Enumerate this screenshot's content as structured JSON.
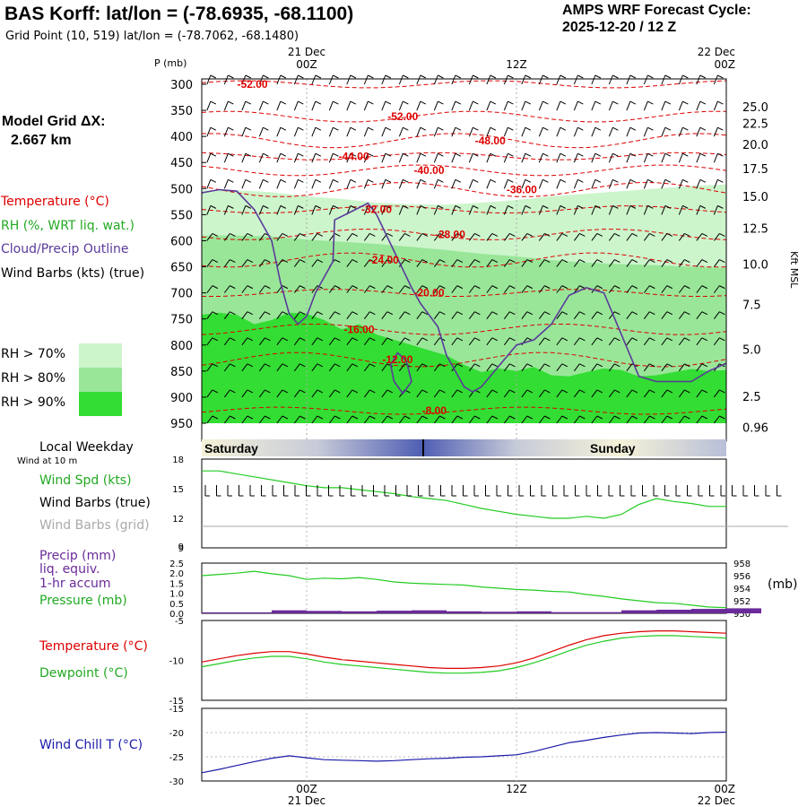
{
  "header": {
    "title": "BAS Korff:  lat/lon = (-78.6935, -68.1100)",
    "grid_point": "Grid Point (10, 519) lat/lon = (-78.7062, -68.1480)",
    "cycle_title": "AMPS WRF Forecast Cycle:",
    "cycle_value": "2025-12-20 / 12  Z"
  },
  "model_grid": {
    "label": "Model Grid ΔX:",
    "value": "2.667 km"
  },
  "colors": {
    "temperature": "#dd0000",
    "rh": "#22bb22",
    "cloud": "#5a3a9a",
    "precip": "#6a2a9a",
    "wind_chill": "#1a1aaa",
    "rh70": "#ccf5cc",
    "rh80": "#99e699",
    "rh90": "#33dd33"
  },
  "top_legend": {
    "temperature": "Temperature (°C)",
    "rh": "RH (%, WRT liq. wat.)",
    "cloud": "Cloud/Precip Outline",
    "wind": "Wind Barbs (kts) (true)",
    "rh70": "RH > 70%",
    "rh80": "RH > 80%",
    "rh90": "RH > 90%"
  },
  "time_axis": {
    "top_labels": [
      {
        "date": "21 Dec",
        "hour": "00Z"
      },
      {
        "date": "",
        "hour": "12Z"
      },
      {
        "date": "22 Dec",
        "hour": "00Z"
      }
    ],
    "bottom_labels": [
      {
        "hour": "00Z",
        "date": "21 Dec"
      },
      {
        "hour": "12Z",
        "date": ""
      },
      {
        "hour": "00Z",
        "date": "22 Dec"
      }
    ]
  },
  "local_weekday": {
    "label": "Local Weekday",
    "days": [
      "Saturday",
      "Sunday"
    ]
  },
  "wind_panel": {
    "caption": "Wind at 10 m",
    "legend": [
      "Wind Spd (kts)",
      "Wind Barbs (true)",
      "Wind Barbs (grid)"
    ],
    "legend_colors": [
      "#22bb22",
      "#000000",
      "#aaaaaa"
    ]
  },
  "precip_panel": {
    "legend": [
      "Precip (mm)",
      "liq. equiv.",
      "1-hr accum",
      "Pressure (mb)"
    ],
    "legend_colors": [
      "#6a2a9a",
      "#6a2a9a",
      "#6a2a9a",
      "#22bb22"
    ],
    "right_unit": "(mb)"
  },
  "temp_panel": {
    "legend": [
      "Temperature (°C)",
      "Dewpoint (°C)"
    ],
    "legend_colors": [
      "#dd0000",
      "#22bb22"
    ]
  },
  "chill_panel": {
    "legend": [
      "Wind Chill T (°C)"
    ],
    "legend_colors": [
      "#1a1aaa"
    ]
  },
  "chart_data": [
    {
      "type": "heatmap",
      "title": "",
      "xlabel": "",
      "ylabel": "P (mb)",
      "y2label": "Kft MSL",
      "x_range_hours": [
        -6,
        24
      ],
      "ylim": [
        300,
        950
      ],
      "pressure_ticks": [
        300,
        350,
        400,
        450,
        500,
        550,
        600,
        650,
        700,
        750,
        800,
        850,
        900,
        950
      ],
      "height_ticks": [
        {
          "label": "25.0",
          "p": 343
        },
        {
          "label": "22.5",
          "p": 375
        },
        {
          "label": "20.0",
          "p": 415
        },
        {
          "label": "17.5",
          "p": 462
        },
        {
          "label": "15.0",
          "p": 515
        },
        {
          "label": "12.5",
          "p": 576
        },
        {
          "label": "10.0",
          "p": 645
        },
        {
          "label": "7.5",
          "p": 722
        },
        {
          "label": "5.0",
          "p": 808
        },
        {
          "label": "2.5",
          "p": 898
        },
        {
          "label": "0.96",
          "p": 958
        }
      ],
      "temperature_contours": [
        {
          "label": "-52.00",
          "x": -3.1,
          "p": 300
        },
        {
          "label": "-52.00",
          "x": 5.5,
          "p": 362
        },
        {
          "label": "-48.00",
          "x": 10.5,
          "p": 408
        },
        {
          "label": "-44.00",
          "x": 2.7,
          "p": 438
        },
        {
          "label": "-40.00",
          "x": 7.0,
          "p": 465
        },
        {
          "label": "-36.00",
          "x": 12.3,
          "p": 502
        },
        {
          "label": "-32.00",
          "x": 4.0,
          "p": 540
        },
        {
          "label": "-28.00",
          "x": 8.2,
          "p": 588
        },
        {
          "label": "-24.00",
          "x": 4.4,
          "p": 637
        },
        {
          "label": "-20.00",
          "x": 7.0,
          "p": 700
        },
        {
          "label": "-16.00",
          "x": 3.0,
          "p": 770
        },
        {
          "label": "-12.00",
          "x": 5.2,
          "p": 828
        },
        {
          "label": "-8.00",
          "x": 7.3,
          "p": 926
        }
      ]
    },
    {
      "type": "line",
      "title": "",
      "ylim": [
        9,
        18
      ],
      "y_ticks": [
        9,
        12,
        15,
        18
      ],
      "series": [
        {
          "name": "Wind Spd (kts)",
          "x": [
            -6,
            -5,
            -3,
            -1,
            0,
            1,
            2,
            3,
            4,
            5,
            6,
            7,
            8,
            9,
            10,
            11,
            12,
            13,
            14,
            15,
            16,
            17,
            18,
            19,
            20,
            21,
            22,
            23,
            24
          ],
          "values": [
            16.8,
            16.8,
            16.2,
            15.6,
            15.3,
            15.1,
            15.1,
            14.9,
            14.7,
            14.5,
            14.2,
            14.0,
            13.8,
            13.4,
            13.0,
            12.7,
            12.4,
            12.2,
            12.0,
            12.0,
            12.2,
            12.0,
            12.4,
            13.4,
            14.0,
            13.7,
            13.5,
            13.2,
            13.2
          ]
        }
      ]
    },
    {
      "type": "bar",
      "title": "",
      "ylim": [
        0,
        2.5
      ],
      "y_ticks": [
        0,
        0.5,
        1.0,
        1.5,
        2.0,
        2.5
      ],
      "y2lim": [
        950,
        958
      ],
      "y2_ticks": [
        950,
        952,
        954,
        956,
        958
      ],
      "series": [
        {
          "name": "Precip (mm)",
          "x": [
            -6,
            -4,
            -2,
            0,
            2,
            4,
            6,
            8,
            10,
            12,
            14,
            16,
            18,
            20,
            22,
            24
          ],
          "values": [
            0.05,
            0.05,
            0.15,
            0.12,
            0.1,
            0.13,
            0.15,
            0.1,
            0.08,
            0.1,
            0.06,
            0.06,
            0.15,
            0.18,
            0.22,
            0.25
          ]
        },
        {
          "name": "Pressure (mb)",
          "x": [
            -6,
            -5,
            -4,
            -3,
            -2,
            -1,
            0,
            1,
            2,
            3,
            4,
            5,
            6,
            7,
            8,
            9,
            10,
            11,
            12,
            13,
            14,
            15,
            16,
            17,
            18,
            19,
            20,
            21,
            22,
            23,
            24
          ],
          "values": [
            956.0,
            956.2,
            956.4,
            956.7,
            956.3,
            956.0,
            955.4,
            955.6,
            955.5,
            955.7,
            955.4,
            955.0,
            954.8,
            954.7,
            954.6,
            954.5,
            954.2,
            954.0,
            953.8,
            953.7,
            953.5,
            953.4,
            953.0,
            952.7,
            952.3,
            952.0,
            951.7,
            951.6,
            951.3,
            951.0,
            950.9
          ]
        }
      ]
    },
    {
      "type": "line",
      "title": "",
      "ylim": [
        -15,
        -5
      ],
      "y_ticks": [
        -15,
        -10,
        -5
      ],
      "series": [
        {
          "name": "Temperature (°C)",
          "x": [
            -6,
            -5,
            -4,
            -3,
            -2,
            -1,
            0,
            1,
            2,
            3,
            4,
            5,
            6,
            7,
            8,
            9,
            10,
            11,
            12,
            13,
            14,
            15,
            16,
            17,
            18,
            19,
            20,
            21,
            22,
            23,
            24
          ],
          "values": [
            -10.2,
            -9.8,
            -9.4,
            -9.1,
            -8.9,
            -8.9,
            -9.2,
            -9.6,
            -9.9,
            -10.1,
            -10.3,
            -10.5,
            -10.7,
            -10.9,
            -11.0,
            -11.0,
            -10.9,
            -10.7,
            -10.3,
            -9.7,
            -8.9,
            -8.1,
            -7.4,
            -6.9,
            -6.6,
            -6.4,
            -6.3,
            -6.3,
            -6.4,
            -6.5,
            -6.6
          ]
        },
        {
          "name": "Dewpoint (°C)",
          "x": [
            -6,
            -5,
            -4,
            -3,
            -2,
            -1,
            0,
            1,
            2,
            3,
            4,
            5,
            6,
            7,
            8,
            9,
            10,
            11,
            12,
            13,
            14,
            15,
            16,
            17,
            18,
            19,
            20,
            21,
            22,
            23,
            24
          ],
          "values": [
            -10.8,
            -10.4,
            -10.0,
            -9.7,
            -9.5,
            -9.5,
            -9.8,
            -10.2,
            -10.5,
            -10.7,
            -10.9,
            -11.1,
            -11.3,
            -11.5,
            -11.6,
            -11.6,
            -11.5,
            -11.3,
            -10.9,
            -10.3,
            -9.6,
            -8.8,
            -8.1,
            -7.6,
            -7.2,
            -7.0,
            -6.9,
            -6.9,
            -7.0,
            -7.1,
            -7.2
          ]
        }
      ]
    },
    {
      "type": "line",
      "title": "",
      "ylim": [
        -30,
        -15
      ],
      "y_ticks": [
        -30,
        -25,
        -20,
        -15
      ],
      "series": [
        {
          "name": "Wind Chill T (°C)",
          "x": [
            -6,
            -5,
            -4,
            -3,
            -2,
            -1,
            0,
            1,
            2,
            3,
            4,
            5,
            6,
            7,
            8,
            9,
            10,
            11,
            12,
            13,
            14,
            15,
            16,
            17,
            18,
            19,
            20,
            21,
            22,
            23,
            24
          ],
          "values": [
            -28.3,
            -27.6,
            -26.8,
            -26.0,
            -25.3,
            -24.8,
            -25.2,
            -25.6,
            -25.7,
            -25.8,
            -25.9,
            -25.8,
            -25.6,
            -25.4,
            -25.3,
            -25.1,
            -25.0,
            -24.8,
            -24.6,
            -23.9,
            -23.0,
            -22.1,
            -21.6,
            -21.0,
            -20.5,
            -20.1,
            -20.0,
            -20.1,
            -20.2,
            -20.0,
            -19.9
          ]
        }
      ]
    }
  ]
}
